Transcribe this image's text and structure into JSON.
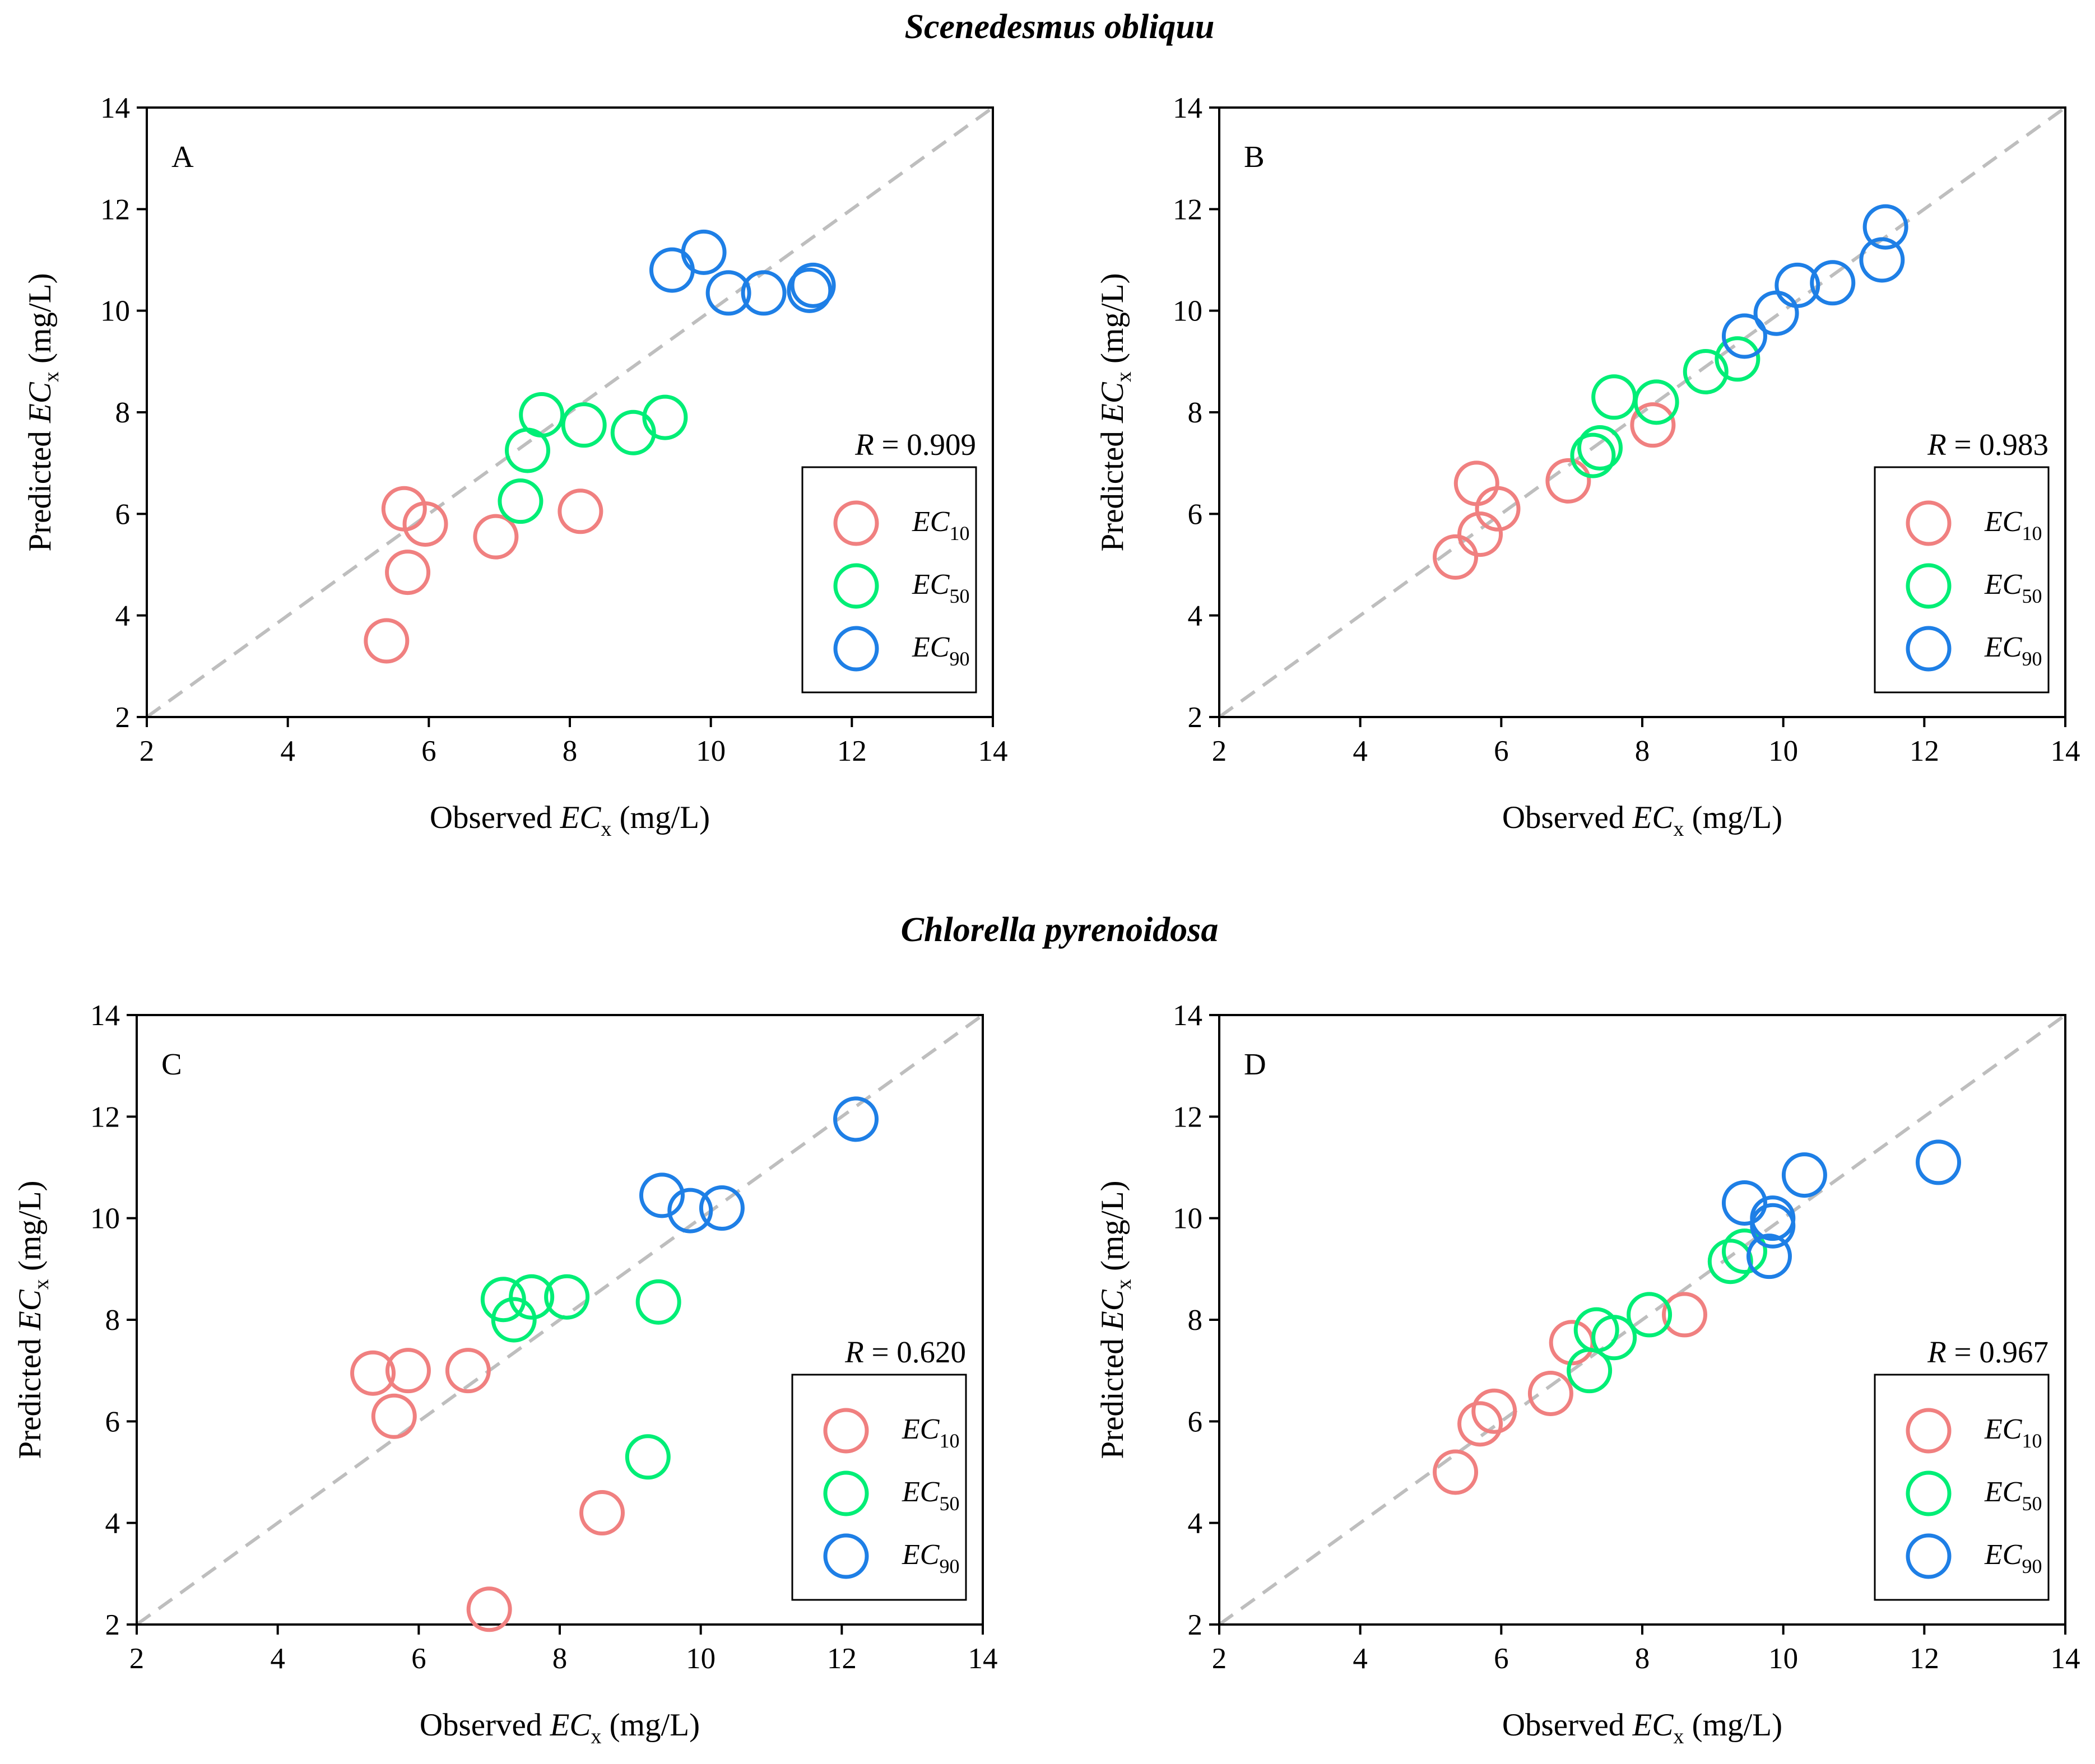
{
  "figure": {
    "species": [
      "Scenedesmus obliquu",
      "Chlorella pyrenoidosa"
    ],
    "colors": {
      "ec10": "#F08080",
      "ec50": "#00EE76",
      "ec90": "#1E7FE6",
      "diagonal": "#BEBEBE"
    }
  },
  "chart_data": [
    {
      "panel": "A",
      "type": "scatter",
      "species": "Scenedesmus obliquu",
      "xlabel": {
        "pre": "Observed ",
        "ec": "EC",
        "sub": "x",
        "post": " (mg/L)"
      },
      "ylabel": {
        "pre": "Predicted ",
        "ec": "EC",
        "sub": "x",
        "post": " (mg/L)"
      },
      "xlim": [
        2,
        14
      ],
      "ylim": [
        2,
        14
      ],
      "ticks": [
        2,
        4,
        6,
        8,
        10,
        12,
        14
      ],
      "reference_line": "y = x",
      "r": {
        "label": "R",
        "value": "= 0.909"
      },
      "legend_position": "bottom-right",
      "series": [
        {
          "name": "EC",
          "sub": "10",
          "color": "#F08080",
          "points": [
            [
              5.4,
              3.5
            ],
            [
              5.7,
              4.85
            ],
            [
              5.65,
              6.1
            ],
            [
              5.95,
              5.8
            ],
            [
              6.95,
              5.55
            ],
            [
              8.15,
              6.05
            ]
          ]
        },
        {
          "name": "EC",
          "sub": "50",
          "color": "#00EE76",
          "points": [
            [
              7.3,
              6.25
            ],
            [
              7.4,
              7.25
            ],
            [
              7.6,
              7.95
            ],
            [
              8.2,
              7.75
            ],
            [
              8.9,
              7.6
            ],
            [
              9.35,
              7.9
            ]
          ]
        },
        {
          "name": "EC",
          "sub": "90",
          "color": "#1E7FE6",
          "points": [
            [
              9.45,
              10.8
            ],
            [
              9.9,
              11.15
            ],
            [
              10.25,
              10.35
            ],
            [
              10.75,
              10.35
            ],
            [
              11.4,
              10.4
            ],
            [
              11.45,
              10.5
            ]
          ]
        }
      ]
    },
    {
      "panel": "B",
      "type": "scatter",
      "species": "Scenedesmus obliquu",
      "xlabel": {
        "pre": "Observed ",
        "ec": "EC",
        "sub": "x",
        "post": " (mg/L)"
      },
      "ylabel": {
        "pre": "Predicted ",
        "ec": "EC",
        "sub": "x",
        "post": " (mg/L)"
      },
      "xlim": [
        2,
        14
      ],
      "ylim": [
        2,
        14
      ],
      "ticks": [
        2,
        4,
        6,
        8,
        10,
        12,
        14
      ],
      "reference_line": "y = x",
      "r": {
        "label": "R",
        "value": "= 0.983"
      },
      "legend_position": "bottom-right",
      "series": [
        {
          "name": "EC",
          "sub": "10",
          "color": "#F08080",
          "points": [
            [
              5.35,
              5.15
            ],
            [
              5.7,
              5.6
            ],
            [
              5.65,
              6.6
            ],
            [
              5.95,
              6.1
            ],
            [
              6.95,
              6.65
            ],
            [
              8.15,
              7.75
            ]
          ]
        },
        {
          "name": "EC",
          "sub": "50",
          "color": "#00EE76",
          "points": [
            [
              7.3,
              7.15
            ],
            [
              7.4,
              7.3
            ],
            [
              7.6,
              8.3
            ],
            [
              8.2,
              8.2
            ],
            [
              8.9,
              8.8
            ],
            [
              9.35,
              9.05
            ]
          ]
        },
        {
          "name": "EC",
          "sub": "90",
          "color": "#1E7FE6",
          "points": [
            [
              9.45,
              9.5
            ],
            [
              9.9,
              9.95
            ],
            [
              10.2,
              10.5
            ],
            [
              10.7,
              10.55
            ],
            [
              11.4,
              11.0
            ],
            [
              11.45,
              11.65
            ]
          ]
        }
      ]
    },
    {
      "panel": "C",
      "type": "scatter",
      "species": "Chlorella pyrenoidosa",
      "xlabel": {
        "pre": "Observed ",
        "ec": "EC",
        "sub": "x",
        "post": " (mg/L)"
      },
      "ylabel": {
        "pre": "Predicted ",
        "ec": "EC",
        "sub": "x",
        "post": " (mg/L)"
      },
      "xlim": [
        2,
        14
      ],
      "ylim": [
        2,
        14
      ],
      "ticks": [
        2,
        4,
        6,
        8,
        10,
        12,
        14
      ],
      "reference_line": "y = x",
      "r": {
        "label": "R",
        "value": "= 0.620"
      },
      "legend_position": "bottom-right",
      "series": [
        {
          "name": "EC",
          "sub": "10",
          "color": "#F08080",
          "points": [
            [
              5.35,
              6.95
            ],
            [
              5.85,
              7.0
            ],
            [
              5.65,
              6.1
            ],
            [
              6.7,
              7.0
            ],
            [
              7.0,
              2.3
            ],
            [
              8.6,
              4.2
            ]
          ]
        },
        {
          "name": "EC",
          "sub": "50",
          "color": "#00EE76",
          "points": [
            [
              7.2,
              8.4
            ],
            [
              7.35,
              8.0
            ],
            [
              7.6,
              8.45
            ],
            [
              8.1,
              8.45
            ],
            [
              9.25,
              5.3
            ],
            [
              9.4,
              8.35
            ]
          ]
        },
        {
          "name": "EC",
          "sub": "90",
          "color": "#1E7FE6",
          "points": [
            [
              9.45,
              10.45
            ],
            [
              9.85,
              10.15
            ],
            [
              10.3,
              10.2
            ],
            [
              12.2,
              11.95
            ]
          ]
        }
      ]
    },
    {
      "panel": "D",
      "type": "scatter",
      "species": "Chlorella pyrenoidosa",
      "xlabel": {
        "pre": "Observed ",
        "ec": "EC",
        "sub": "x",
        "post": " (mg/L)"
      },
      "ylabel": {
        "pre": "Predicted ",
        "ec": "EC",
        "sub": "x",
        "post": " (mg/L)"
      },
      "xlim": [
        2,
        14
      ],
      "ylim": [
        2,
        14
      ],
      "ticks": [
        2,
        4,
        6,
        8,
        10,
        12,
        14
      ],
      "reference_line": "y = x",
      "r": {
        "label": "R",
        "value": "= 0.967"
      },
      "legend_position": "bottom-right",
      "series": [
        {
          "name": "EC",
          "sub": "10",
          "color": "#F08080",
          "points": [
            [
              5.35,
              5.0
            ],
            [
              5.7,
              5.95
            ],
            [
              5.9,
              6.2
            ],
            [
              6.7,
              6.55
            ],
            [
              7.0,
              7.55
            ],
            [
              8.6,
              8.1
            ]
          ]
        },
        {
          "name": "EC",
          "sub": "50",
          "color": "#00EE76",
          "points": [
            [
              7.25,
              7.0
            ],
            [
              7.35,
              7.8
            ],
            [
              7.6,
              7.65
            ],
            [
              8.1,
              8.1
            ],
            [
              9.25,
              9.15
            ],
            [
              9.45,
              9.35
            ]
          ]
        },
        {
          "name": "EC",
          "sub": "90",
          "color": "#1E7FE6",
          "points": [
            [
              9.45,
              10.3
            ],
            [
              9.85,
              9.85
            ],
            [
              9.85,
              10.0
            ],
            [
              9.8,
              9.25
            ],
            [
              10.3,
              10.85
            ],
            [
              12.2,
              11.1
            ]
          ]
        }
      ]
    }
  ]
}
